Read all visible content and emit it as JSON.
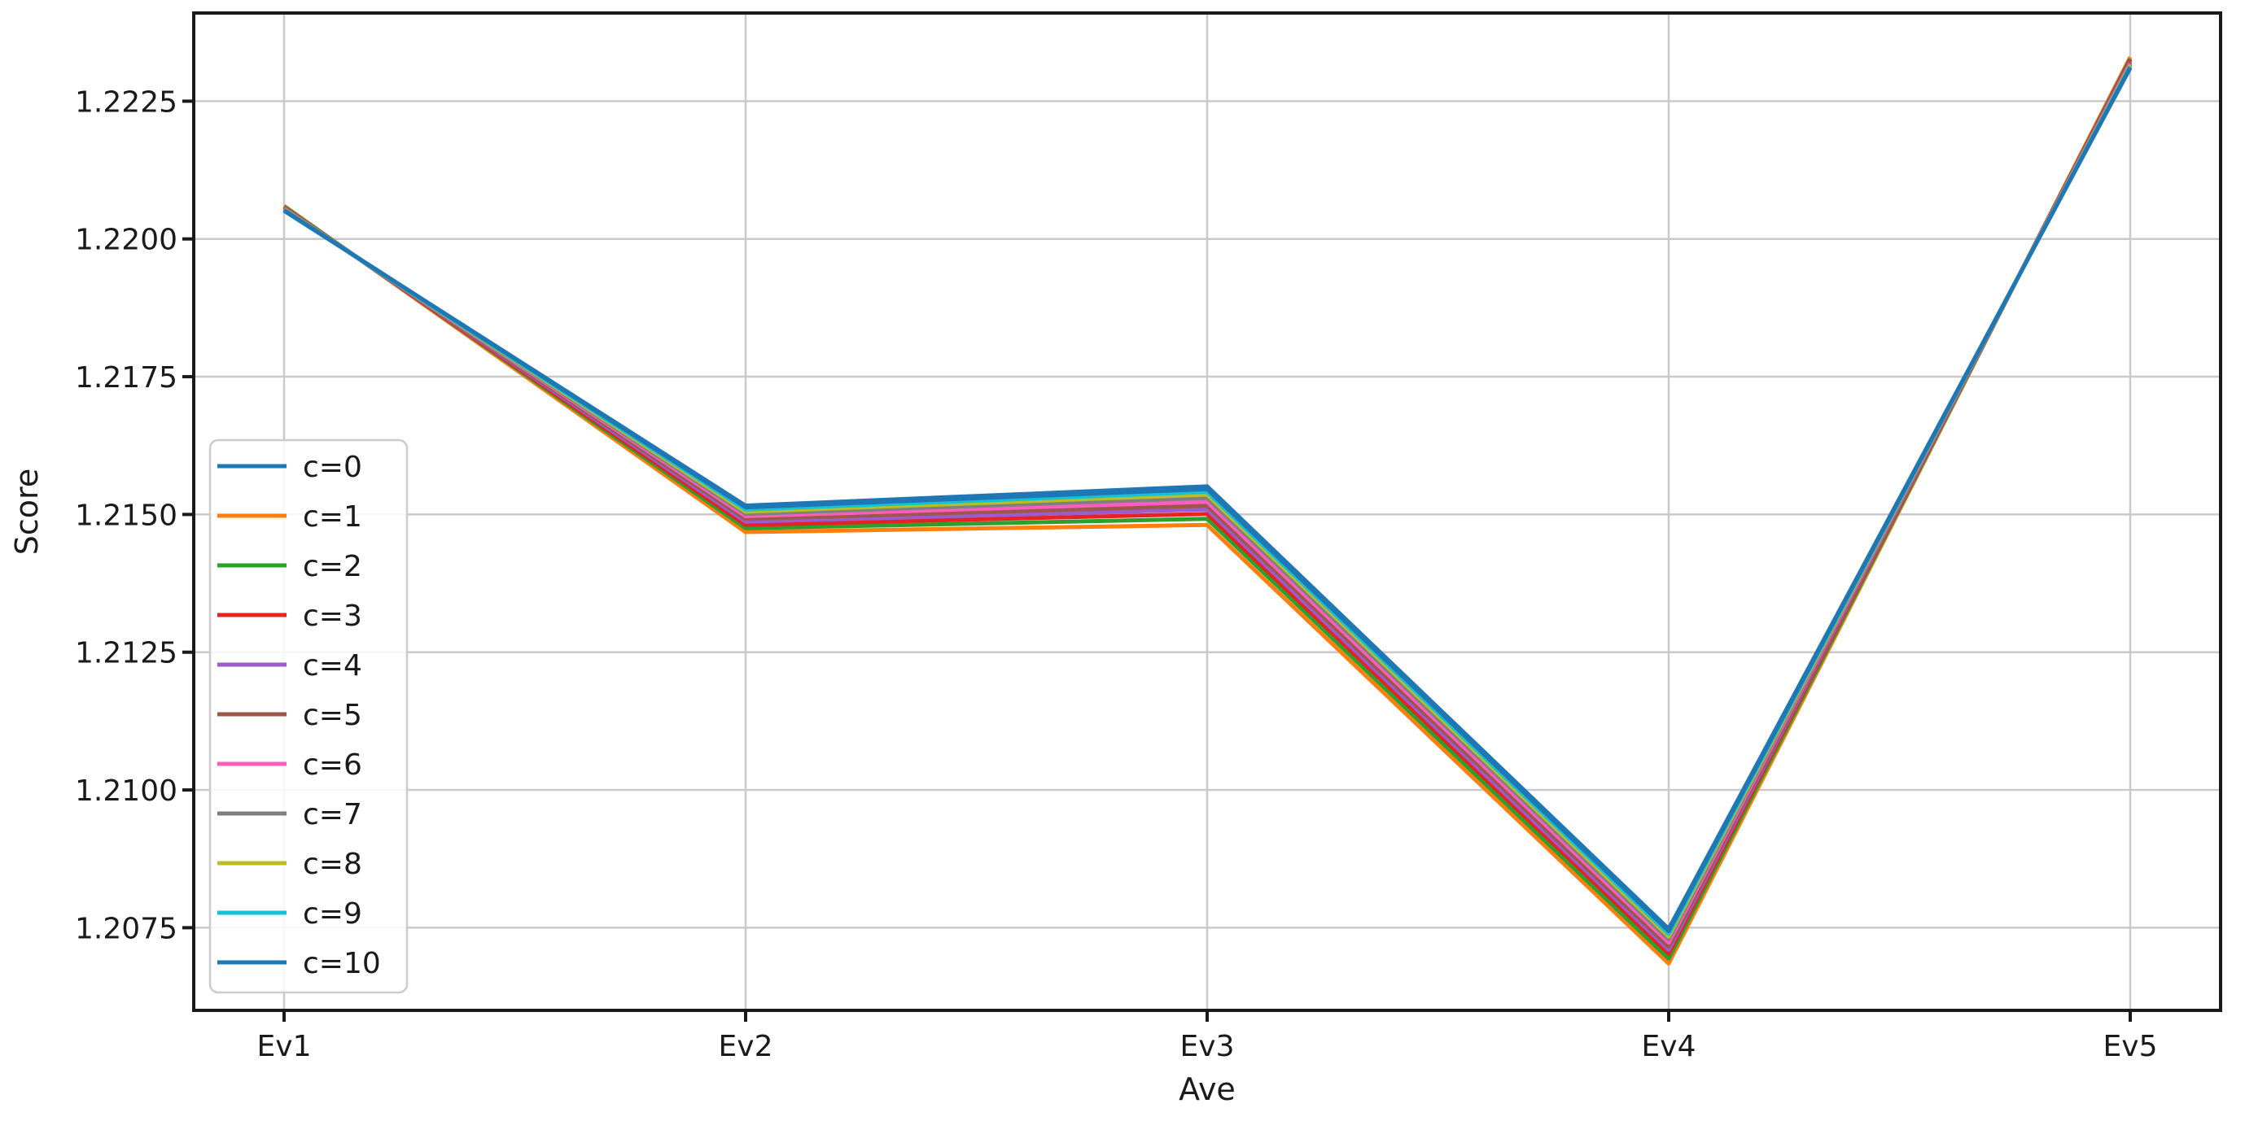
{
  "figure": {
    "background": "#ffffff"
  },
  "chart_data": {
    "type": "line",
    "xlabel": "Ave",
    "ylabel": "Score",
    "categories": [
      "Ev1",
      "Ev2",
      "Ev3",
      "Ev4",
      "Ev5"
    ],
    "series": [
      {
        "name": "c=0",
        "color": "#1f77b4",
        "values": [
          1.22051,
          1.21516,
          1.21551,
          1.20748,
          1.2231
        ]
      },
      {
        "name": "c=1",
        "color": "#ff7f0e",
        "values": [
          1.2206,
          1.21468,
          1.21481,
          1.20685,
          1.2233
        ]
      },
      {
        "name": "c=2",
        "color": "#2ca02c",
        "values": [
          1.22059,
          1.21475,
          1.21492,
          1.20694,
          1.22327
        ]
      },
      {
        "name": "c=3",
        "color": "#e62222",
        "values": [
          1.22057,
          1.21481,
          1.21501,
          1.20703,
          1.22325
        ]
      },
      {
        "name": "c=4",
        "color": "#9a5cce",
        "values": [
          1.22056,
          1.21487,
          1.21509,
          1.2071,
          1.22322
        ]
      },
      {
        "name": "c=5",
        "color": "#9d5648",
        "values": [
          1.22055,
          1.21492,
          1.21516,
          1.20716,
          1.2232
        ]
      },
      {
        "name": "c=6",
        "color": "#ff5dc0",
        "values": [
          1.22055,
          1.21497,
          1.21523,
          1.20723,
          1.22318
        ]
      },
      {
        "name": "c=7",
        "color": "#7f7f7f",
        "values": [
          1.22054,
          1.21501,
          1.2153,
          1.20729,
          1.22316
        ]
      },
      {
        "name": "c=8",
        "color": "#bcbd22",
        "values": [
          1.22053,
          1.21505,
          1.21536,
          1.20734,
          1.22315
        ]
      },
      {
        "name": "c=9",
        "color": "#13c2d8",
        "values": [
          1.22052,
          1.21509,
          1.21541,
          1.20739,
          1.22313
        ]
      },
      {
        "name": "c=10",
        "color": "#1f77b4",
        "values": [
          1.22052,
          1.21513,
          1.21546,
          1.20744,
          1.22311
        ]
      }
    ],
    "ylim": [
      1.206,
      1.2241
    ],
    "yticks": {
      "values": [
        1.2075,
        1.21,
        1.2125,
        1.215,
        1.2175,
        1.22,
        1.2225
      ],
      "labels": [
        "1.2075",
        "1.2100",
        "1.2125",
        "1.2150",
        "1.2175",
        "1.2200",
        "1.2225"
      ]
    },
    "grid": true,
    "legend": {
      "location": "inside-left",
      "labels": [
        "c=0",
        "c=1",
        "c=2",
        "c=3",
        "c=4",
        "c=5",
        "c=6",
        "c=7",
        "c=8",
        "c=9",
        "c=10"
      ]
    }
  },
  "style": {
    "grid_color": "#c9c9c9",
    "spine_color": "#1a1a1a",
    "legend_border_color": "#cccccc",
    "legend_background": "#ffffff"
  }
}
